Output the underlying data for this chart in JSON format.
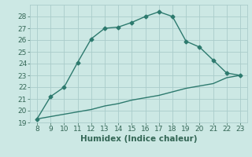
{
  "xlabel": "Humidex (Indice chaleur)",
  "line1_x": [
    8,
    9,
    10,
    11,
    12,
    13,
    14,
    15,
    16,
    17,
    18,
    19,
    20,
    21,
    22,
    23
  ],
  "line1_y": [
    19.3,
    21.2,
    22.0,
    24.1,
    26.1,
    27.0,
    27.1,
    27.5,
    28.0,
    28.4,
    28.0,
    25.9,
    25.4,
    24.3,
    23.2,
    23.0
  ],
  "line2_x": [
    8,
    9,
    10,
    11,
    12,
    13,
    14,
    15,
    16,
    17,
    18,
    19,
    20,
    21,
    22,
    23
  ],
  "line2_y": [
    19.3,
    19.5,
    19.7,
    19.9,
    20.1,
    20.4,
    20.6,
    20.9,
    21.1,
    21.3,
    21.6,
    21.9,
    22.1,
    22.3,
    22.8,
    23.0
  ],
  "line_color": "#2d7a6e",
  "bg_color": "#cce8e4",
  "grid_color": "#aaccca",
  "ylim": [
    19,
    29
  ],
  "xlim": [
    7.5,
    23.5
  ],
  "yticks": [
    19,
    20,
    21,
    22,
    23,
    24,
    25,
    26,
    27,
    28
  ],
  "xticks": [
    8,
    9,
    10,
    11,
    12,
    13,
    14,
    15,
    16,
    17,
    18,
    19,
    20,
    21,
    22,
    23
  ],
  "marker": "D",
  "markersize": 2.5,
  "linewidth": 1.0,
  "font_color": "#336655",
  "xlabel_fontsize": 7.5,
  "tick_fontsize": 6.5
}
